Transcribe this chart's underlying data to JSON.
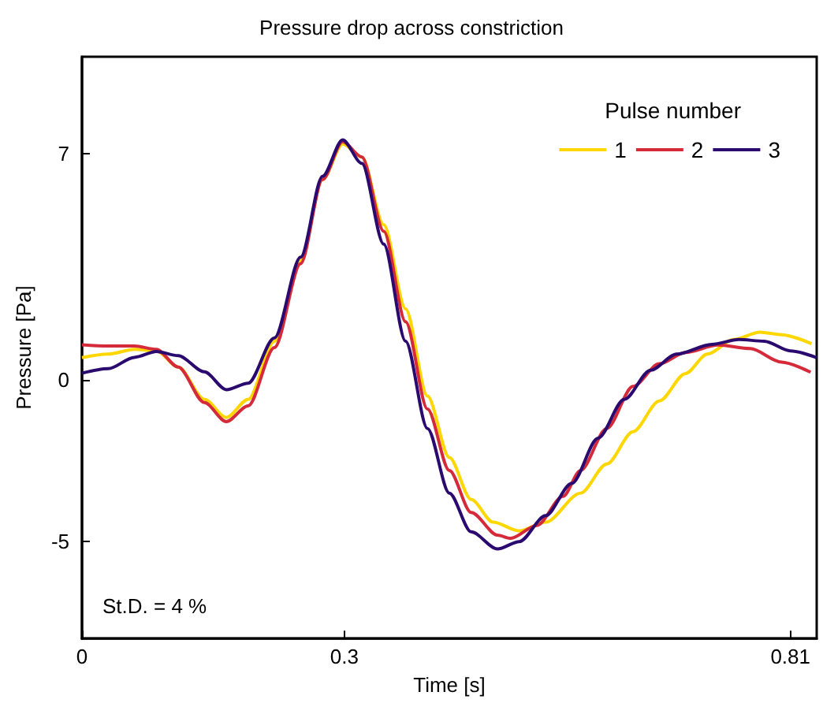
{
  "chart_data": {
    "type": "line",
    "title": "Pressure drop across constriction",
    "xlabel": "Time [s]",
    "ylabel": "Pressure [Pa]",
    "legend_title": "Pulse number",
    "legend": "top right",
    "grid": false,
    "marker": "none",
    "line_style": "solid",
    "xlim": [
      0,
      0.84
    ],
    "xticks": [
      0,
      0.3,
      0.81
    ],
    "ylim": [
      -8,
      10
    ],
    "yticks": [
      -5,
      0,
      7
    ],
    "annotations": [
      "St.D. = 4 %"
    ],
    "series": [
      {
        "name": "1",
        "color": "#ffd700",
        "x": [
          0,
          0.03,
          0.06,
          0.085,
          0.11,
          0.14,
          0.165,
          0.19,
          0.22,
          0.25,
          0.275,
          0.298,
          0.32,
          0.345,
          0.37,
          0.395,
          0.42,
          0.445,
          0.47,
          0.5,
          0.53,
          0.57,
          0.6,
          0.63,
          0.66,
          0.69,
          0.715,
          0.745,
          0.775,
          0.8,
          0.834
        ],
        "values": [
          0.69,
          0.8,
          0.95,
          0.9,
          0.4,
          -0.6,
          -1.16,
          -0.6,
          1.2,
          3.7,
          6.2,
          7.3,
          6.9,
          4.8,
          2.2,
          -0.5,
          -2.4,
          -3.7,
          -4.4,
          -4.67,
          -4.4,
          -3.5,
          -2.6,
          -1.6,
          -0.65,
          0.2,
          0.8,
          1.25,
          1.48,
          1.4,
          1.12
        ]
      },
      {
        "name": "2",
        "color": "#d42a3a",
        "x": [
          0,
          0.03,
          0.06,
          0.085,
          0.11,
          0.14,
          0.165,
          0.19,
          0.22,
          0.25,
          0.275,
          0.298,
          0.32,
          0.345,
          0.37,
          0.395,
          0.42,
          0.445,
          0.475,
          0.49,
          0.52,
          0.55,
          0.57,
          0.6,
          0.63,
          0.66,
          0.69,
          0.727,
          0.764,
          0.8,
          0.833
        ],
        "values": [
          1.09,
          1.05,
          1.05,
          0.95,
          0.4,
          -0.7,
          -1.29,
          -0.8,
          1.0,
          3.6,
          6.2,
          7.37,
          6.9,
          4.6,
          1.8,
          -0.9,
          -2.8,
          -4.1,
          -4.8,
          -4.9,
          -4.5,
          -3.6,
          -2.8,
          -1.5,
          -0.2,
          0.5,
          0.85,
          1.08,
          0.97,
          0.55,
          0.24
        ]
      },
      {
        "name": "3",
        "color": "#2a0a6e",
        "x": [
          0,
          0.03,
          0.06,
          0.085,
          0.11,
          0.14,
          0.165,
          0.19,
          0.22,
          0.25,
          0.275,
          0.298,
          0.32,
          0.345,
          0.37,
          0.395,
          0.42,
          0.445,
          0.475,
          0.5,
          0.53,
          0.56,
          0.59,
          0.62,
          0.65,
          0.68,
          0.72,
          0.751,
          0.78,
          0.81,
          0.84
        ],
        "values": [
          0.21,
          0.35,
          0.7,
          0.88,
          0.75,
          0.25,
          -0.3,
          -0.1,
          1.3,
          3.8,
          6.3,
          7.43,
          6.7,
          4.2,
          1.2,
          -1.5,
          -3.5,
          -4.7,
          -5.23,
          -5.0,
          -4.2,
          -3.2,
          -1.8,
          -0.6,
          0.3,
          0.8,
          1.1,
          1.25,
          1.2,
          0.9,
          0.69
        ]
      }
    ]
  }
}
